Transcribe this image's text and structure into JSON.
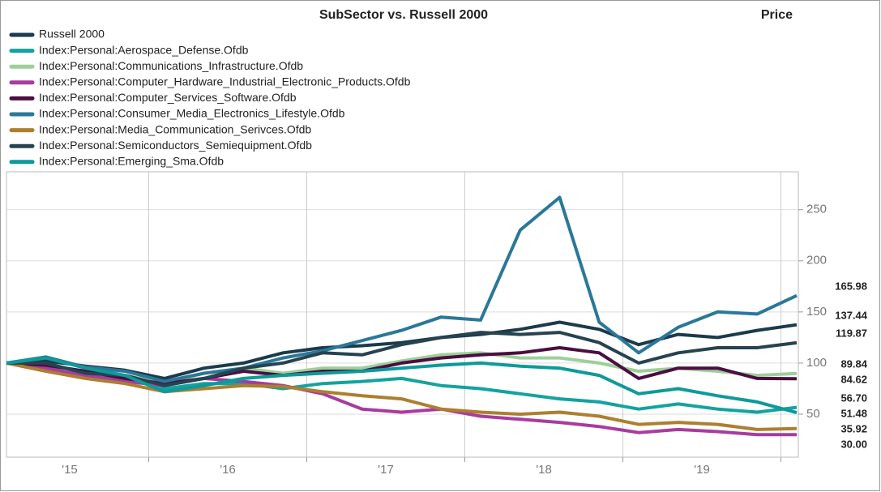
{
  "chart_data": {
    "type": "line",
    "title": "SubSector vs. Russell 2000",
    "y_label": "Price",
    "legend": "top-left",
    "grid": true,
    "xlim": [
      2015.1,
      2020.11
    ],
    "xticks": [
      {
        "value": 2015,
        "label": "'15"
      },
      {
        "value": 2016,
        "label": "'16"
      },
      {
        "value": 2017,
        "label": "'17"
      },
      {
        "value": 2018,
        "label": "'18"
      },
      {
        "value": 2019,
        "label": "'19"
      },
      {
        "value": 2020,
        "label": null
      }
    ],
    "ylim": [
      8,
      287
    ],
    "yticks": [
      50,
      100,
      150,
      200,
      250
    ],
    "x": [
      2015.1,
      2015.35,
      2015.6,
      2015.85,
      2016.1,
      2016.35,
      2016.6,
      2016.85,
      2017.1,
      2017.35,
      2017.6,
      2017.85,
      2018.1,
      2018.35,
      2018.6,
      2018.85,
      2019.1,
      2019.35,
      2019.6,
      2019.85,
      2020.1
    ],
    "series": [
      {
        "name": "Russell 2000",
        "color": "#1b3b4d",
        "values": [
          100,
          102,
          97,
          93,
          85,
          95,
          100,
          110,
          115,
          117,
          120,
          125,
          128,
          133,
          140,
          133,
          118,
          128,
          125,
          132,
          137.44
        ],
        "value_labels": [
          null,
          null,
          null,
          null,
          null,
          null,
          null,
          null,
          null,
          null,
          null,
          null,
          null,
          null,
          null,
          null,
          null,
          null,
          null,
          null,
          "137.44"
        ]
      },
      {
        "name": "Index:Personal:Aerospace_Defense.Ofdb",
        "color": "#13a3a0",
        "values": [
          100,
          95,
          88,
          85,
          75,
          80,
          80,
          75,
          80,
          82,
          85,
          78,
          75,
          70,
          65,
          62,
          55,
          60,
          55,
          52,
          56.7
        ],
        "value_labels": [
          null,
          null,
          null,
          null,
          null,
          null,
          null,
          null,
          null,
          null,
          null,
          null,
          null,
          null,
          null,
          null,
          null,
          null,
          null,
          null,
          "56.70"
        ]
      },
      {
        "name": "Index:Personal:Communications_Infrastructure.Ofdb",
        "color": "#9dcf9a",
        "values": [
          100,
          93,
          90,
          88,
          80,
          90,
          95,
          90,
          95,
          95,
          102,
          108,
          110,
          105,
          105,
          100,
          92,
          95,
          92,
          88,
          89.84
        ],
        "value_labels": [
          null,
          null,
          null,
          null,
          null,
          null,
          null,
          null,
          null,
          null,
          null,
          null,
          null,
          null,
          null,
          null,
          null,
          null,
          null,
          null,
          "89.84"
        ]
      },
      {
        "name": "Index:Personal:Computer_Hardware_Industrial_Electronic_Products.Ofdb",
        "color": "#a73c9f",
        "values": [
          100,
          95,
          88,
          82,
          78,
          85,
          82,
          78,
          70,
          55,
          52,
          55,
          48,
          45,
          42,
          38,
          32,
          35,
          33,
          30,
          30
        ],
        "value_labels": [
          null,
          null,
          null,
          null,
          null,
          null,
          null,
          null,
          null,
          null,
          null,
          null,
          null,
          null,
          null,
          null,
          null,
          null,
          null,
          null,
          "30.00"
        ]
      },
      {
        "name": "Index:Personal:Computer_Services_Software.Ofdb",
        "color": "#4a0e40",
        "values": [
          100,
          98,
          92,
          85,
          80,
          85,
          92,
          88,
          92,
          92,
          100,
          105,
          108,
          110,
          115,
          110,
          85,
          95,
          95,
          85,
          84.62
        ],
        "value_labels": [
          null,
          null,
          null,
          null,
          null,
          null,
          null,
          null,
          null,
          null,
          null,
          null,
          null,
          null,
          null,
          null,
          null,
          null,
          null,
          null,
          "84.62"
        ]
      },
      {
        "name": "Index:Personal:Consumer_Media_Electronics_Lifestyle.Ofdb",
        "color": "#2a7899",
        "values": [
          100,
          106,
          96,
          92,
          82,
          90,
          95,
          105,
          112,
          122,
          132,
          145,
          142,
          230,
          262,
          140,
          110,
          135,
          150,
          148,
          165.98
        ],
        "value_labels": [
          null,
          null,
          null,
          null,
          null,
          null,
          null,
          null,
          null,
          null,
          null,
          null,
          null,
          null,
          null,
          null,
          null,
          null,
          null,
          null,
          "165.98"
        ]
      },
      {
        "name": "Index:Personal:Media_Communication_Serivces.Ofdb",
        "color": "#ad7f2e",
        "values": [
          100,
          92,
          85,
          80,
          72,
          75,
          78,
          77,
          72,
          68,
          65,
          55,
          52,
          50,
          52,
          48,
          40,
          42,
          40,
          35,
          35.92
        ],
        "value_labels": [
          null,
          null,
          null,
          null,
          null,
          null,
          null,
          null,
          null,
          null,
          null,
          null,
          null,
          null,
          null,
          null,
          null,
          null,
          null,
          null,
          "35.92"
        ]
      },
      {
        "name": "Index:Personal:Semiconductors_Semiequipment.Ofdb",
        "color": "#26434f",
        "values": [
          100,
          100,
          90,
          88,
          78,
          85,
          95,
          100,
          110,
          108,
          118,
          125,
          130,
          128,
          130,
          120,
          100,
          110,
          115,
          115,
          119.87
        ],
        "value_labels": [
          null,
          null,
          null,
          null,
          null,
          null,
          null,
          null,
          null,
          null,
          null,
          null,
          null,
          null,
          null,
          null,
          null,
          null,
          null,
          null,
          "119.87"
        ]
      },
      {
        "name": "Index:Personal:Emerging_Sma.Ofdb",
        "color": "#0e9a9a",
        "values": [
          100,
          105,
          95,
          88,
          72,
          78,
          85,
          88,
          90,
          92,
          95,
          98,
          100,
          97,
          95,
          88,
          70,
          75,
          68,
          62,
          51.48
        ],
        "value_labels": [
          null,
          null,
          null,
          null,
          null,
          null,
          null,
          null,
          null,
          null,
          null,
          null,
          null,
          null,
          null,
          null,
          null,
          null,
          null,
          null,
          "51.48"
        ]
      }
    ]
  }
}
